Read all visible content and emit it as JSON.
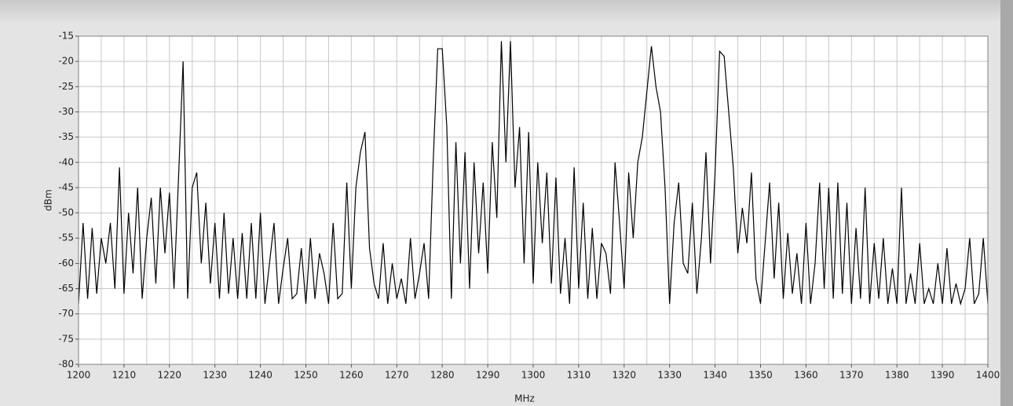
{
  "chart_data": {
    "type": "line",
    "xlabel": "MHz",
    "ylabel": "dBm",
    "xlim": [
      1200,
      1400
    ],
    "xticks": [
      1200,
      1210,
      1220,
      1230,
      1240,
      1250,
      1260,
      1270,
      1280,
      1290,
      1300,
      1310,
      1320,
      1330,
      1340,
      1350,
      1360,
      1370,
      1380,
      1390,
      1400
    ],
    "ylim": [
      -80,
      -15
    ],
    "yticks": [
      -15,
      -20,
      -25,
      -30,
      -35,
      -40,
      -45,
      -50,
      -55,
      -60,
      -65,
      -70,
      -75,
      -80
    ],
    "grid": true,
    "x": [
      1200,
      1201,
      1202,
      1203,
      1204,
      1205,
      1206,
      1207,
      1208,
      1209,
      1210,
      1211,
      1212,
      1213,
      1214,
      1215,
      1216,
      1217,
      1218,
      1219,
      1220,
      1221,
      1222,
      1223,
      1224,
      1225,
      1226,
      1227,
      1228,
      1229,
      1230,
      1231,
      1232,
      1233,
      1234,
      1235,
      1236,
      1237,
      1238,
      1239,
      1240,
      1241,
      1242,
      1243,
      1244,
      1245,
      1246,
      1247,
      1248,
      1249,
      1250,
      1251,
      1252,
      1253,
      1254,
      1255,
      1256,
      1257,
      1258,
      1259,
      1260,
      1261,
      1262,
      1263,
      1264,
      1265,
      1266,
      1267,
      1268,
      1269,
      1270,
      1271,
      1272,
      1273,
      1274,
      1275,
      1276,
      1277,
      1278,
      1279,
      1280,
      1281,
      1282,
      1283,
      1284,
      1285,
      1286,
      1287,
      1288,
      1289,
      1290,
      1291,
      1292,
      1293,
      1294,
      1295,
      1296,
      1297,
      1298,
      1299,
      1300,
      1301,
      1302,
      1303,
      1304,
      1305,
      1306,
      1307,
      1308,
      1309,
      1310,
      1311,
      1312,
      1313,
      1314,
      1315,
      1316,
      1317,
      1318,
      1319,
      1320,
      1321,
      1322,
      1323,
      1324,
      1325,
      1326,
      1327,
      1328,
      1329,
      1330,
      1331,
      1332,
      1333,
      1334,
      1335,
      1336,
      1337,
      1338,
      1339,
      1340,
      1341,
      1342,
      1343,
      1344,
      1345,
      1346,
      1347,
      1348,
      1349,
      1350,
      1351,
      1352,
      1353,
      1354,
      1355,
      1356,
      1357,
      1358,
      1359,
      1360,
      1361,
      1362,
      1363,
      1364,
      1365,
      1366,
      1367,
      1368,
      1369,
      1370,
      1371,
      1372,
      1373,
      1374,
      1375,
      1376,
      1377,
      1378,
      1379,
      1380,
      1381,
      1382,
      1383,
      1384,
      1385,
      1386,
      1387,
      1388,
      1389,
      1390,
      1391,
      1392,
      1393,
      1394,
      1395,
      1396,
      1397,
      1398,
      1399,
      1400
    ],
    "series": [
      {
        "color": "#000000",
        "values": [
          -68,
          -52,
          -67,
          -53,
          -66,
          -55,
          -60,
          -52,
          -65,
          -41,
          -66,
          -50,
          -62,
          -45,
          -67,
          -55,
          -47,
          -64,
          -45,
          -58,
          -46,
          -65,
          -43,
          -20,
          -67,
          -45,
          -42,
          -60,
          -48,
          -64,
          -52,
          -67,
          -50,
          -66,
          -55,
          -67,
          -54,
          -67,
          -52,
          -67,
          -50,
          -68,
          -60,
          -52,
          -68,
          -61,
          -55,
          -67,
          -66,
          -57,
          -68,
          -55,
          -67,
          -58,
          -62,
          -68,
          -52,
          -67,
          -66,
          -44,
          -65,
          -45,
          -38,
          -34,
          -57,
          -64,
          -67,
          -56,
          -68,
          -60,
          -67,
          -63,
          -68,
          -55,
          -67,
          -62,
          -56,
          -67,
          -40,
          -17.5,
          -17.5,
          -33,
          -67,
          -36,
          -60,
          -38,
          -65,
          -40,
          -58,
          -44,
          -62,
          -36,
          -51,
          -16,
          -40,
          -16,
          -45,
          -33,
          -60,
          -34,
          -64,
          -40,
          -56,
          -42,
          -64,
          -43,
          -66,
          -55,
          -68,
          -41,
          -65,
          -48,
          -67,
          -53,
          -67,
          -56,
          -58,
          -66,
          -40,
          -52,
          -65,
          -42,
          -55,
          -40,
          -35,
          -26,
          -17,
          -25,
          -30,
          -45,
          -68,
          -52,
          -44,
          -60,
          -62,
          -48,
          -66,
          -55,
          -38,
          -60,
          -42,
          -18,
          -19,
          -30,
          -41,
          -58,
          -49,
          -56,
          -42,
          -63,
          -68,
          -56,
          -44,
          -63,
          -48,
          -67,
          -54,
          -66,
          -58,
          -68,
          -52,
          -68,
          -60,
          -44,
          -65,
          -45,
          -67,
          -44,
          -66,
          -48,
          -68,
          -53,
          -67,
          -45,
          -68,
          -56,
          -67,
          -55,
          -68,
          -61,
          -68,
          -45,
          -68,
          -62,
          -68,
          -56,
          -68,
          -65,
          -68,
          -60,
          -68,
          -57,
          -68,
          -64,
          -68,
          -65,
          -55,
          -68,
          -66,
          -55,
          -68
        ]
      }
    ]
  }
}
